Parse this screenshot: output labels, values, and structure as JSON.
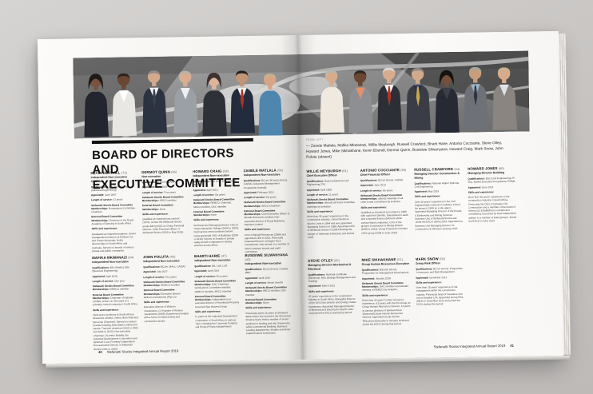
{
  "colors": {
    "background": "#c9c6c4",
    "page": "#f7f5f2",
    "ink": "#111111",
    "photo_base": "#8f8f8f"
  },
  "left_page": {
    "title_line1": "BOARD OF DIRECTORS AND",
    "title_line2": "EXECUTIVE COMMITTEE",
    "page_number": "40",
    "footer_text": "Stefanutti Stocks Integrated Annual Report 2019",
    "bios": [
      {
        "name": "KEVIN EBORALL",
        "age": "(72)",
        "role": "Independent Non-executive Chairman",
        "body": [
          "Qualifications: Nat Dip Prod Eng (Industrial Engineering)",
          "Appointed: June 2007",
          "Length of service: 12 years",
          "Stefanutti Stocks Board Committee Memberships: Nominations Committee Chairman",
          "External Board Committee Memberships: Chairman at the Royal Academy of Dancing in South Africa",
          "Skills and experience:",
          "Graduated as industrial engineer, Senior management positions at Delloyd, ICL and Fraser Alexander, Holds directorships in South Africa and Australia, Served on boards of various private and public companies"
        ]
      },
      {
        "name": "DERMOT QUINN",
        "age": "(65)",
        "role": "Non-executive",
        "body": [
          "Qualifications: BCom, CA(SA)",
          "Appointed: June 2015",
          "Length of service: Four years",
          "Stefanutti Stocks Board Committee Memberships: ARCO member",
          "External Board Committee Memberships: None",
          "Skills and experience:",
          "Qualified as chartered accountant (1974), Joined the Stefanutti Stocks group during 2002 as Group Financial Director, Chief Financial Officer of Stefanutti Stocks (2003 to May 2015)"
        ]
      },
      {
        "name": "HOWARD CRAIG",
        "age": "(58)",
        "role": "Independent Non-executive",
        "body": [
          "Qualifications: BSc (Civil Engineering), MAP",
          "Appointed: April 2013",
          "Length of service: Six years",
          "Stefanutti Stocks Board Committee Memberships: REMCO Chairman, ARCO member, GAC member",
          "External Board Committee Memberships: None",
          "Skills and experience:",
          "Technical and Managing Director roles at Fraser Alexander Tailings (1994 to 2004), Held various senior positions before being appointed CEO of Buildmax (2008 to 2013), Serves on boards of private equity growth companies in mining services across Africa"
        ]
      },
      {
        "name": "ZANELE MATLALA",
        "age": "(54)",
        "role": "Independent Non-executive",
        "body": [
          "Qualifications: BCom, BCompt (Hons), CA(SA), Advanced Management Programme (Insead)",
          "Appointed: February 2013",
          "Length of service: Six years",
          "Stefanutti Stocks Board Committee Memberships: ARCO Chairman",
          "External Board Committee Memberships: Chief Executive Officer of Merafe Resources Limited, Non-executive director of Royal Bafokeng Platinum Limited",
          "Skills and experience:",
          "CFO of Merafe Resources (2006) and appointed CEO in 2012, Previously Financial Director at Kagiso Trust Investments, Has served on a number of listed company boards and audit committees"
        ]
      },
      {
        "name": "MAFIKA MKWANAZI",
        "age": "(64)",
        "role": "Independent Non-executive",
        "body": [
          "Qualifications: BSc (Maths), BSc (Electrical Engineering)",
          "Appointed: April 2018",
          "Length of service: One year",
          "Stefanutti Stocks Board Committee Memberships: REMCO member",
          "External Board Committee Memberships: Chairman of Hulamin Limited, serves on the board of a privately owned company in South Africa",
          "Skills and experience:",
          "Held senior positions at South African Breweries Limited, Unitra, Metro Rail and Spoornet (Transnet), Served on various boards including Absa Bank Limited and Sasria, Transnet chairman (2001 to 2003 and 2004 to 2010), Non-executive Chairman of Lereko Mobility, the Industrial Development Corporation and Optimum Coal, Formerly Independent Non-executive Director of Stefanutti Stocks (2011 to 2015)"
        ]
      },
      {
        "name": "JOHN POLUTA",
        "age": "(45)",
        "role": "Independent Non-executive",
        "body": [
          "Qualifications: BCom, MAcc, CA(SA)",
          "Appointed: July 2017",
          "Length of service: Two years",
          "Stefanutti Stocks Board Committee Memberships: REMCO member",
          "External Board Committee Memberships: Executive director Woburn Investments (Pty) Ltd",
          "Skills and experience:",
          "Executive director of Woburn Investments, Co-founder of Woburn Investments (2005), Experienced analyst with a focus on listed mining and construction stocks"
        ]
      },
      {
        "name": "BHARTI HARIE",
        "age": "(47)",
        "role": "Independent Non-executive",
        "body": [
          "Qualifications: BA, LLB, LLM",
          "Appointed: April 2014",
          "Length of service: Five years",
          "Stefanutti Stocks Board Committee Memberships: GAC Chairman, Nominations Committee member, REMCO member, ARCO member",
          "External Board Committee Memberships: Independent non-executive director of Accelerate Property Fund and Sea Harvest Group",
          "Skills and experience:",
          "17 years at the Industrial Development Corporation of South Africa in various roles, including the Corporate Funding and Project Finance departments"
        ]
      },
      {
        "name": "BUSISIWE SILWANYANA",
        "age": "(43)",
        "role": "Independent Non-executive",
        "body": [
          "Qualifications: BCom (Hons), CA(SA), MBA",
          "Appointed: April 2019",
          "Length of service: Seven months",
          "Stefanutti Stocks Board Committee Memberships: ARCO member, GAC member",
          "External Board Committee Memberships: None",
          "Skills and experience:",
          "Previously spent 14 years at Standard Bank where she served in the Structured Finance team, Held a number of senior positions in lending and risk, Experience within Commercial Banking, Business Lending departments, Models and Motor Capital finance businesses"
        ]
      }
    ]
  },
  "right_page": {
    "caption_label": "From left",
    "caption_names": "— Zanele Matlala, Mafika Mkwanazi, Willie Meyburgh, Russell Crawford, Bharti Harie, Antonio Cocciante, Steve Otley, Howard Jones, Mike Sikhakhane, Kevin Eborall, Dermot Quinn, Busisiwe Silwanyana, Howard Craig, Mark Snow, John Poluta (absent)",
    "page_number": "41",
    "footer_text": "Stefanutti Stocks Integrated Annual Report 2019",
    "bios": [
      {
        "name": "WILLIE MEYBURGH",
        "age": "(61)",
        "role": "Chief Executive Officer",
        "body": [
          "Qualifications: National Diploma Civil Engineering (T4)",
          "Appointed: April 2008",
          "Length of service: 11 years",
          "Stefanutti Stocks Board Committee Memberships: attends all board committee meetings by invitation.",
          "Skills and experience:",
          "More than 35 years' experience in the construction industry, Joined Stocks & Stocks Civils in 1994 and was appointed Managing Director in 1998, Appointed CEO of Stefanutti Stocks in 2008 following the merger of Stefanutti & Bressan and Stocks Civils"
        ]
      },
      {
        "name": "ANTONIO COCCIANTE",
        "age": "(60)",
        "role": "Chief Financial Officer",
        "body": [
          "Qualifications: BCom (Hons), CA(SA)",
          "Appointed: June 2013",
          "Length of service: Six years",
          "Stefanutti Stocks Board Committee Memberships: attends meetings of all other board committees by invitation.",
          "Skills and experience:",
          "Qualified as chartered accountant in 1985 with audit firm Deloitte, Specialised in audit and corporate finance divisions within various listed companies, CFO of the group's Construction & Mining division (1999 to 2013), Group Financial Controller of the group (2009 to June 2013)"
        ]
      },
      {
        "name": "RUSSELL CRAWFORD",
        "age": "(54)",
        "role": "Managing Director Construction & Mining",
        "body": [
          "Qualifications: National Higher Diploma Civil Engineering",
          "Appointed: May 2015",
          "Skills and experience:",
          "Over 30 years' experience in the Civil Engineering/Construction industry, Joined the group in 1998 as a site agent, Appointed Managing Director of the Roads & Earthworks and Mining Services Business Unit of Stefanutti Stocks and joined the EXCO during 2014, Appointed as Business Unit Managing Director for Construction & Mining in January 2015"
        ]
      },
      {
        "name": "HOWARD JONES",
        "age": "(60)",
        "role": "Managing Director Building",
        "body": [
          "Qualifications: BSc (Civil Engineering), Pr Eng, Market Executive Programme, PGBM",
          "Appointed: June 2014",
          "Skills and experience:",
          "More than 40 years' experience in the construction industry in South Africa, Previously the CEO of Grinaker LTA Construction and a member of the board of Aveng Ltd, Established a construction consultancy and acted as lead independent advisor to a number of listed groups, Joined the EXCO in June 2014"
        ]
      },
      {
        "name": "STEVE OTLEY",
        "age": "(55)",
        "role": "Managing Director Mechanical & Electrical",
        "body": [
          "Qualifications: National Certificate (Electrical), MSc (Energy Management and Trading)",
          "Appointed: March 2012",
          "Skills and experience:",
          "37 years' experience in the construction industry in South Africa, Managing Director of the Oil & Gas division and Energy cluster businesses, Appointed Managing Director of Mechanical & Electrical in March 2012 and joined the EXCO during that period"
        ]
      },
      {
        "name": "MIKE SIKHAKHANE",
        "age": "(51)",
        "role": "Group Human Resources Executive",
        "body": [
          "Qualifications: BSocSc (Hons), Programme for Management Development",
          "Appointed: January 2018",
          "Stefanutti Stocks Board Committee Memberships: GAC member and attends meeting of REMCO by invitation.",
          "Skills and experience:",
          "More than 20 years' human resources experience, 6.5 years with the PG Group as Group Human Resources Director, 11 years at various divisions of Barloworld as Divisional/Cluster Human Resources Director, Appointed Group Human Resources Executive in January 2018 and joined the EXCO during that period"
        ]
      },
      {
        "name": "MARK SNOW",
        "age": "(50)",
        "role": "Group Risk Officer",
        "body": [
          "Qualifications: BCom (Hons), Programme in Insurance and Risk Management",
          "Appointed: November 2012",
          "Skills and experience:",
          "More than 25 years' experience in risk management within the construction industry, Previously head of insurance and risk at Grinaker LTA, Appointed Group Risk Officer in November 2012 and joined the EXCO during that period"
        ]
      }
    ]
  },
  "photo_people": {
    "left": [
      {
        "female": true,
        "skin": "#7a5240",
        "hair": "#1d1a18",
        "jacket": "#23262e",
        "shirt": "#23262e"
      },
      {
        "skin": "#6b4632",
        "hair": "#2a2320",
        "jacket": "#e9e7e3",
        "shirt": "#ffffff"
      },
      {
        "skin": "#d3a98c",
        "hair": "#8f8a85",
        "jacket": "#2b3240",
        "shirt": "#f2f2f2",
        "tie": "#3a3f4d"
      },
      {
        "skin": "#d8ad90",
        "hair": "#b9b3a8",
        "jacket": "#9aa0a6",
        "shirt": "#eef0f2"
      },
      {
        "female": true,
        "skin": "#e0b49a",
        "hair": "#3c3330",
        "jacket": "#2e3138",
        "shirt": "#2e3138"
      },
      {
        "skin": "#c39577",
        "hair": "#23201e",
        "jacket": "#232c3d",
        "shirt": "#f5f5f5",
        "tie": "#b23227"
      },
      {
        "skin": "#d7a585",
        "hair": "#c9b38e",
        "jacket": "#4f86ad",
        "shirt": "#4f86ad"
      }
    ],
    "right": [
      {
        "skin": "#d8ab8d",
        "hair": "#b9b6ae",
        "jacket": "#efe9df",
        "shirt": "#efe9df"
      },
      {
        "skin": "#6b4632",
        "hair": "#2a2420",
        "jacket": "#8d8f93",
        "shirt": "#e3906d"
      },
      {
        "skin": "#d8ab8d",
        "hair": "#d9d6d0",
        "jacket": "#2c2f36",
        "shirt": "#f4f4f4",
        "tie": "#b23227"
      },
      {
        "skin": "#d3a98c",
        "hair": "#8f8a85",
        "jacket": "#3a3d45",
        "shirt": "#2a3350",
        "tie": "#caa94e"
      },
      {
        "female": true,
        "skin": "#77503c",
        "hair": "#15120f",
        "jacket": "#272a33",
        "shirt": "#3a3f4a"
      },
      {
        "skin": "#c99c7c",
        "hair": "#a9a49c",
        "jacket": "#6e7278",
        "shirt": "#9db6c9",
        "tie": "#2e3642"
      },
      {
        "skin": "#d8ab8d",
        "hair": "#c9b38e",
        "jacket": "#8a8580",
        "shirt": "#dfe3e6"
      }
    ]
  }
}
